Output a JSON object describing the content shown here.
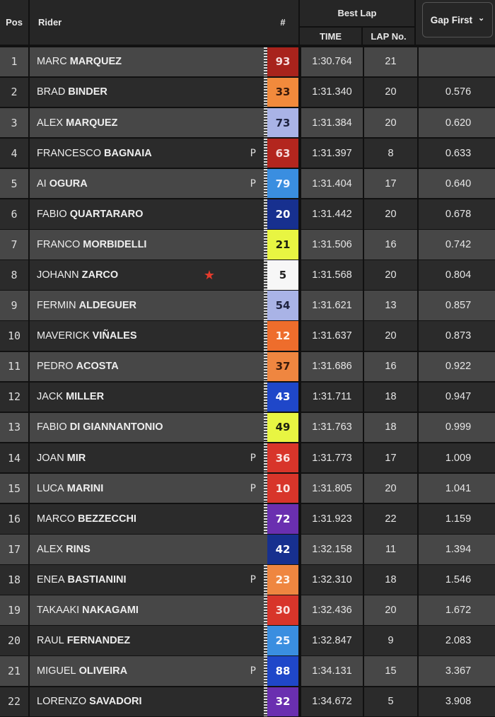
{
  "header": {
    "pos": "Pos",
    "rider": "Rider",
    "number": "#",
    "best_lap": "Best Lap",
    "time": "TIME",
    "lap_no": "LAP No.",
    "gap_select": "Gap First",
    "gap_chevron": "⌄"
  },
  "rows": [
    {
      "pos": "1",
      "first": "MARC",
      "last": "MARQUEZ",
      "num": "93",
      "bg": "#a8231c",
      "fg": "#f5dcdc",
      "time": "1:30.764",
      "lap": "21",
      "gap": "",
      "p": "",
      "star": false,
      "flag": true
    },
    {
      "pos": "2",
      "first": "BRAD",
      "last": "BINDER",
      "num": "33",
      "bg": "#f28a3c",
      "fg": "#3a1a0a",
      "time": "1:31.340",
      "lap": "20",
      "gap": "0.576",
      "p": "",
      "star": false,
      "flag": true
    },
    {
      "pos": "3",
      "first": "ALEX",
      "last": "MARQUEZ",
      "num": "73",
      "bg": "#a9b3e6",
      "fg": "#1e2340",
      "time": "1:31.384",
      "lap": "20",
      "gap": "0.620",
      "p": "",
      "star": false,
      "flag": true
    },
    {
      "pos": "4",
      "first": "FRANCESCO",
      "last": "BAGNAIA",
      "num": "63",
      "bg": "#b3261e",
      "fg": "#f5dcdc",
      "time": "1:31.397",
      "lap": "8",
      "gap": "0.633",
      "p": "P",
      "star": false,
      "flag": true
    },
    {
      "pos": "5",
      "first": "AI",
      "last": "OGURA",
      "num": "79",
      "bg": "#3a8ee0",
      "fg": "#eef4ff",
      "time": "1:31.404",
      "lap": "17",
      "gap": "0.640",
      "p": "P",
      "star": false,
      "flag": true
    },
    {
      "pos": "6",
      "first": "FABIO",
      "last": "QUARTARARO",
      "num": "20",
      "bg": "#17308f",
      "fg": "#ffffff",
      "time": "1:31.442",
      "lap": "20",
      "gap": "0.678",
      "p": "",
      "star": false,
      "flag": true
    },
    {
      "pos": "7",
      "first": "FRANCO",
      "last": "MORBIDELLI",
      "num": "21",
      "bg": "#e8f542",
      "fg": "#1d2010",
      "time": "1:31.506",
      "lap": "16",
      "gap": "0.742",
      "p": "",
      "star": false,
      "flag": true
    },
    {
      "pos": "8",
      "first": "JOHANN",
      "last": "ZARCO",
      "num": "5",
      "bg": "#f7f7f7",
      "fg": "#222222",
      "time": "1:31.568",
      "lap": "20",
      "gap": "0.804",
      "p": "",
      "star": true,
      "flag": true
    },
    {
      "pos": "9",
      "first": "FERMIN",
      "last": "ALDEGUER",
      "num": "54",
      "bg": "#a9b3e6",
      "fg": "#1e2340",
      "time": "1:31.621",
      "lap": "13",
      "gap": "0.857",
      "p": "",
      "star": false,
      "flag": true
    },
    {
      "pos": "10",
      "first": "MAVERICK",
      "last": "VIÑALES",
      "num": "12",
      "bg": "#ee6d2c",
      "fg": "#fff2e8",
      "time": "1:31.637",
      "lap": "20",
      "gap": "0.873",
      "p": "",
      "star": false,
      "flag": true
    },
    {
      "pos": "11",
      "first": "PEDRO",
      "last": "ACOSTA",
      "num": "37",
      "bg": "#ef8640",
      "fg": "#3a1a0a",
      "time": "1:31.686",
      "lap": "16",
      "gap": "0.922",
      "p": "",
      "star": false,
      "flag": true
    },
    {
      "pos": "12",
      "first": "JACK",
      "last": "MILLER",
      "num": "43",
      "bg": "#1f47c9",
      "fg": "#ffffff",
      "time": "1:31.711",
      "lap": "18",
      "gap": "0.947",
      "p": "",
      "star": false,
      "flag": true
    },
    {
      "pos": "13",
      "first": "FABIO",
      "last": "DI GIANNANTONIO",
      "num": "49",
      "bg": "#e8f542",
      "fg": "#1d2010",
      "time": "1:31.763",
      "lap": "18",
      "gap": "0.999",
      "p": "",
      "star": false,
      "flag": true
    },
    {
      "pos": "14",
      "first": "JOAN",
      "last": "MIR",
      "num": "36",
      "bg": "#d8352a",
      "fg": "#fbe3e0",
      "time": "1:31.773",
      "lap": "17",
      "gap": "1.009",
      "p": "P",
      "star": false,
      "flag": true
    },
    {
      "pos": "15",
      "first": "LUCA",
      "last": "MARINI",
      "num": "10",
      "bg": "#d8352a",
      "fg": "#fbe3e0",
      "time": "1:31.805",
      "lap": "20",
      "gap": "1.041",
      "p": "P",
      "star": false,
      "flag": true
    },
    {
      "pos": "16",
      "first": "MARCO",
      "last": "BEZZECCHI",
      "num": "72",
      "bg": "#6a2fb0",
      "fg": "#ffffff",
      "time": "1:31.923",
      "lap": "22",
      "gap": "1.159",
      "p": "",
      "star": false,
      "flag": true
    },
    {
      "pos": "17",
      "first": "ALEX",
      "last": "RINS",
      "num": "42",
      "bg": "#17308f",
      "fg": "#ffffff",
      "time": "1:32.158",
      "lap": "11",
      "gap": "1.394",
      "p": "",
      "star": false,
      "flag": false
    },
    {
      "pos": "18",
      "first": "ENEA",
      "last": "BASTIANINI",
      "num": "23",
      "bg": "#ef8640",
      "fg": "#fff2e8",
      "time": "1:32.310",
      "lap": "18",
      "gap": "1.546",
      "p": "P",
      "star": false,
      "flag": true
    },
    {
      "pos": "19",
      "first": "TAKAAKI",
      "last": "NAKAGAMI",
      "num": "30",
      "bg": "#d8352a",
      "fg": "#fbe3e0",
      "time": "1:32.436",
      "lap": "20",
      "gap": "1.672",
      "p": "",
      "star": false,
      "flag": true
    },
    {
      "pos": "20",
      "first": "RAUL",
      "last": "FERNANDEZ",
      "num": "25",
      "bg": "#3a8ee0",
      "fg": "#eef4ff",
      "time": "1:32.847",
      "lap": "9",
      "gap": "2.083",
      "p": "",
      "star": false,
      "flag": true
    },
    {
      "pos": "21",
      "first": "MIGUEL",
      "last": "OLIVEIRA",
      "num": "88",
      "bg": "#1f47c9",
      "fg": "#ffffff",
      "time": "1:34.131",
      "lap": "15",
      "gap": "3.367",
      "p": "P",
      "star": false,
      "flag": true
    },
    {
      "pos": "22",
      "first": "LORENZO",
      "last": "SAVADORI",
      "num": "32",
      "bg": "#6a2fb0",
      "fg": "#ffffff",
      "time": "1:34.672",
      "lap": "5",
      "gap": "3.908",
      "p": "",
      "star": false,
      "flag": true
    }
  ]
}
